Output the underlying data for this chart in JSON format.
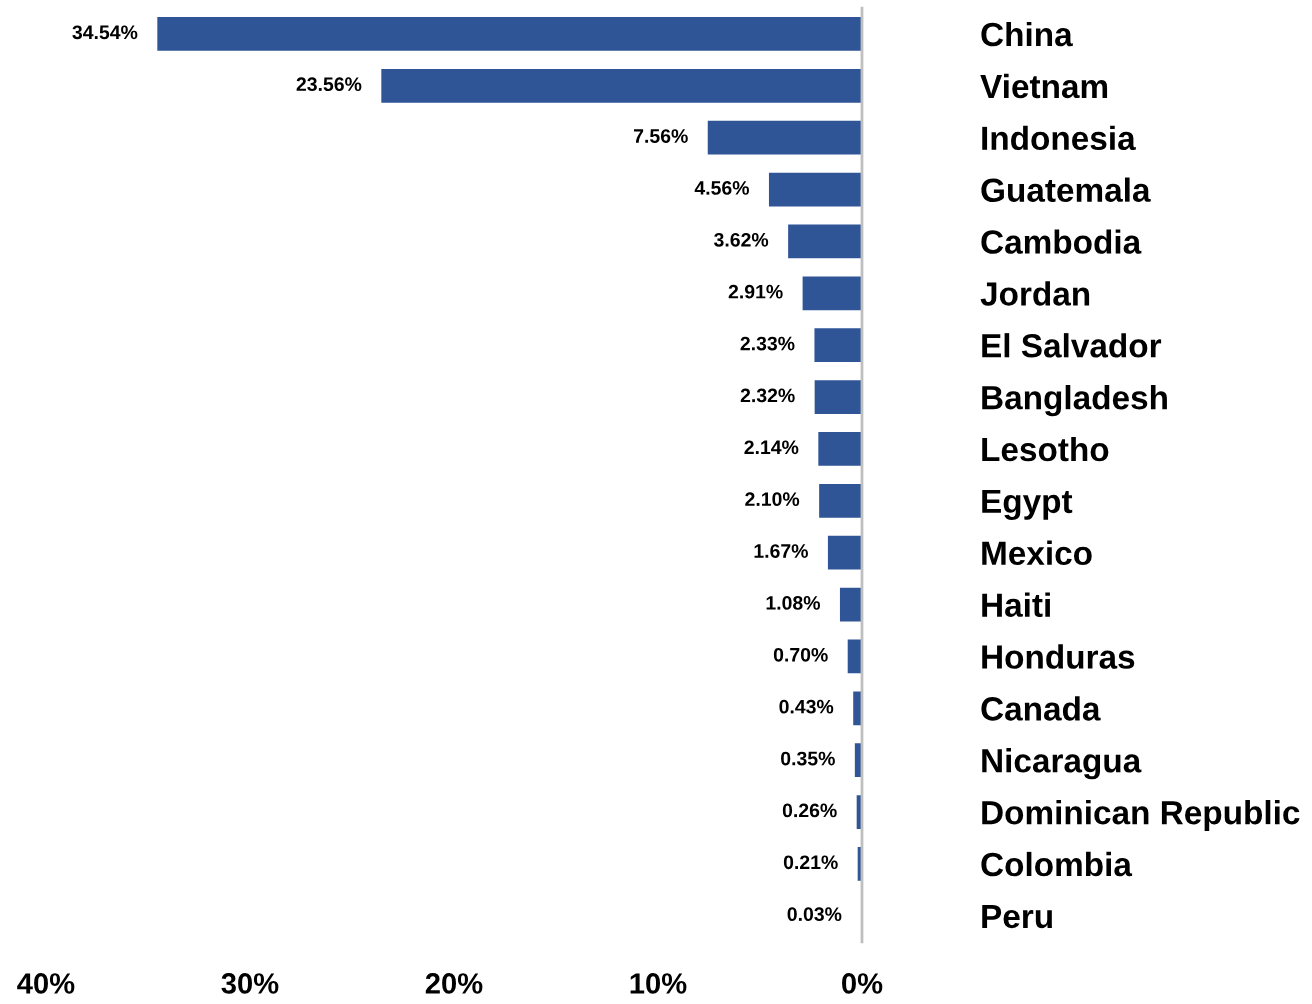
{
  "chart_data": {
    "type": "bar",
    "orientation": "horizontal",
    "categories": [
      "China",
      "Vietnam",
      "Indonesia",
      "Guatemala",
      "Cambodia",
      "Jordan",
      "El Salvador",
      "Bangladesh",
      "Lesotho",
      "Egypt",
      "Mexico",
      "Haiti",
      "Honduras",
      "Canada",
      "Nicaragua",
      "Dominican Republic",
      "Colombia",
      "Peru"
    ],
    "values": [
      34.54,
      23.56,
      7.56,
      4.56,
      3.62,
      2.91,
      2.33,
      2.32,
      2.14,
      2.1,
      1.67,
      1.08,
      0.7,
      0.43,
      0.35,
      0.26,
      0.21,
      0.03
    ],
    "value_labels": [
      "34.54%",
      "23.56%",
      "7.56%",
      "4.56%",
      "3.62%",
      "2.91%",
      "2.33%",
      "2.32%",
      "2.14%",
      "2.10%",
      "1.67%",
      "1.08%",
      "0.70%",
      "0.43%",
      "0.35%",
      "0.26%",
      "0.21%",
      "0.03%"
    ],
    "color": "#2f5597",
    "xlim": [
      40,
      0
    ],
    "xticks": [
      {
        "value": 40,
        "label": "40%"
      },
      {
        "value": 30,
        "label": "30%"
      },
      {
        "value": 20,
        "label": "20%"
      },
      {
        "value": 10,
        "label": "10%"
      },
      {
        "value": 0,
        "label": "0%"
      }
    ],
    "grid": false,
    "legend": false
  }
}
